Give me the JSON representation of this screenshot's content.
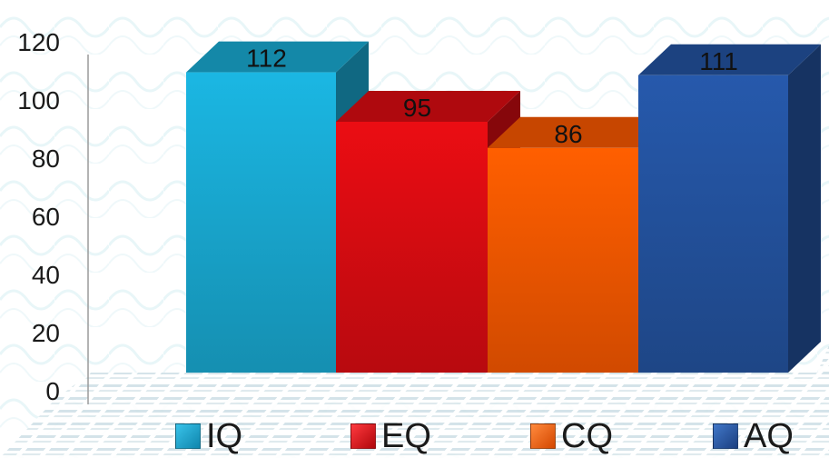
{
  "chart_data": {
    "type": "bar",
    "categories": [
      "IQ",
      "EQ",
      "CQ",
      "AQ"
    ],
    "values": [
      112,
      95,
      86,
      111
    ],
    "data_labels": [
      "112",
      "95",
      "86",
      "111"
    ],
    "y_ticks": [
      "0",
      "20",
      "40",
      "60",
      "80",
      "100",
      "120"
    ],
    "ylim": [
      0,
      120
    ],
    "three_d": true,
    "grid": false,
    "legend_position": "bottom",
    "colors": {
      "IQ": "#1aaed8",
      "EQ": "#e00c12",
      "CQ": "#ff5a00",
      "AQ": "#2455a4"
    }
  },
  "legend": {
    "items": [
      {
        "label": "IQ",
        "color": "#1aaed8"
      },
      {
        "label": "EQ",
        "color": "#e00c12"
      },
      {
        "label": "CQ",
        "color": "#ff5a00"
      },
      {
        "label": "AQ",
        "color": "#2455a4"
      }
    ]
  }
}
